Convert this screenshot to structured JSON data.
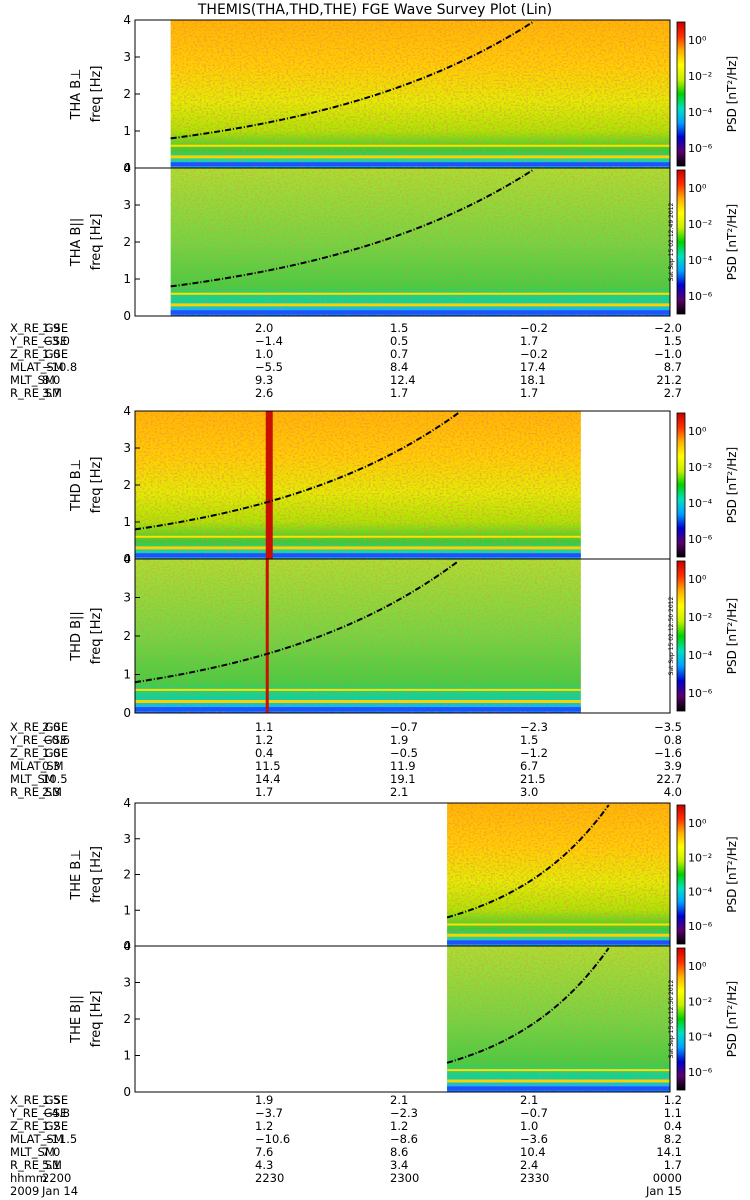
{
  "title": "THEMIS(THA,THD,THE) FGE Wave Survey Plot (Lin)",
  "colorbar": {
    "label": "PSD [nT²/Hz]",
    "ticks": [
      "10⁰",
      "10⁻²",
      "10⁻⁴",
      "10⁻⁶"
    ],
    "colors": [
      "#000000",
      "#5a006e",
      "#0000cc",
      "#00a0ff",
      "#00e0c0",
      "#00d000",
      "#c8f000",
      "#ffff00",
      "#ffb000",
      "#ff3000",
      "#c80000"
    ]
  },
  "stamps": [
    "Sat Sep 15 02:12:49 2012",
    "Sat Sep 15 02:12:50 2012",
    "Sat Sep 15 02:12:50 2012"
  ],
  "chart_data": [
    {
      "type": "heatmap",
      "ylabel": "THA B⊥",
      "yunit": "freq [Hz]",
      "ylim": [
        0,
        4
      ],
      "yticks": [
        "0",
        "1",
        "2",
        "3",
        "4"
      ],
      "data_span": [
        2208,
        2400
      ]
    },
    {
      "type": "heatmap",
      "ylabel": "THA B||",
      "yunit": "freq [Hz]",
      "ylim": [
        0,
        4
      ],
      "yticks": [
        "0",
        "1",
        "2",
        "3",
        "4"
      ],
      "data_span": [
        2208,
        2400
      ]
    },
    {
      "type": "heatmap",
      "ylabel": "THD B⊥",
      "yunit": "freq [Hz]",
      "ylim": [
        0,
        4
      ],
      "yticks": [
        "0",
        "1",
        "2",
        "3",
        "4"
      ],
      "data_span": [
        2200,
        2340
      ]
    },
    {
      "type": "heatmap",
      "ylabel": "THD B||",
      "yunit": "freq [Hz]",
      "ylim": [
        0,
        4
      ],
      "yticks": [
        "0",
        "1",
        "2",
        "3",
        "4"
      ],
      "data_span": [
        2200,
        2340
      ]
    },
    {
      "type": "heatmap",
      "ylabel": "THE B⊥",
      "yunit": "freq [Hz]",
      "ylim": [
        0,
        4
      ],
      "yticks": [
        "0",
        "1",
        "2",
        "3",
        "4"
      ],
      "data_span": [
        2310,
        2400
      ]
    },
    {
      "type": "heatmap",
      "ylabel": "THE B||",
      "yunit": "freq [Hz]",
      "ylim": [
        0,
        4
      ],
      "yticks": [
        "0",
        "1",
        "2",
        "3",
        "4"
      ],
      "data_span": [
        2310,
        2400
      ]
    }
  ],
  "ephemeris": [
    {
      "rows": [
        {
          "label": "X_RE_GSE",
          "values": [
            "1.9",
            "2.0",
            "1.5",
            "−0.2",
            "−2.0"
          ]
        },
        {
          "label": "Y_RE_GSE",
          "values": [
            "−3.0",
            "−1.4",
            "0.5",
            "1.7",
            "1.5"
          ]
        },
        {
          "label": "Z_RE_GSE",
          "values": [
            "1.0",
            "1.0",
            "0.7",
            "−0.2",
            "−1.0"
          ]
        },
        {
          "label": "MLAT_SM",
          "values": [
            "−10.8",
            "−5.5",
            "8.4",
            "17.4",
            "8.7"
          ]
        },
        {
          "label": "MLT_SM",
          "values": [
            "8.0",
            "9.3",
            "12.4",
            "18.1",
            "21.2"
          ]
        },
        {
          "label": "R_RE_SM",
          "values": [
            "3.7",
            "2.6",
            "1.7",
            "1.7",
            "2.7"
          ]
        }
      ]
    },
    {
      "rows": [
        {
          "label": "X_RE_GSE",
          "values": [
            "2.0",
            "1.1",
            "−0.7",
            "−2.3",
            "−3.5"
          ]
        },
        {
          "label": "Y_RE_GSE",
          "values": [
            "−0.6",
            "1.2",
            "1.9",
            "1.5",
            "0.8"
          ]
        },
        {
          "label": "Z_RE_GSE",
          "values": [
            "1.0",
            "0.4",
            "−0.5",
            "−1.2",
            "−1.6"
          ]
        },
        {
          "label": "MLAT_SM",
          "values": [
            "0.3",
            "11.5",
            "11.9",
            "6.7",
            "3.9"
          ]
        },
        {
          "label": "MLT_SM",
          "values": [
            "10.5",
            "14.4",
            "19.1",
            "21.5",
            "22.7"
          ]
        },
        {
          "label": "R_RE_SM",
          "values": [
            "2.3",
            "1.7",
            "2.1",
            "3.0",
            "4.0"
          ]
        }
      ]
    },
    {
      "rows": [
        {
          "label": "X_RE_GSE",
          "values": [
            "1.5",
            "1.9",
            "2.1",
            "2.1",
            "1.2"
          ]
        },
        {
          "label": "Y_RE_GSE",
          "values": [
            "−4.8",
            "−3.7",
            "−2.3",
            "−0.7",
            "1.1"
          ]
        },
        {
          "label": "Z_RE_GSE",
          "values": [
            "1.2",
            "1.2",
            "1.2",
            "1.0",
            "0.4"
          ]
        },
        {
          "label": "MLAT_SM",
          "values": [
            "−11.5",
            "−10.6",
            "−8.6",
            "−3.6",
            "8.2"
          ]
        },
        {
          "label": "MLT_SM",
          "values": [
            "7.0",
            "7.6",
            "8.6",
            "10.4",
            "14.1"
          ]
        },
        {
          "label": "R_RE_SM",
          "values": [
            "5.1",
            "4.3",
            "3.4",
            "2.4",
            "1.7"
          ]
        },
        {
          "label": "hhmm",
          "values": [
            "2200",
            "2230",
            "2300",
            "2330",
            "0000"
          ]
        },
        {
          "label": "2009",
          "values": [
            "Jan 14",
            "",
            "",
            "",
            "Jan 15"
          ]
        }
      ]
    }
  ]
}
